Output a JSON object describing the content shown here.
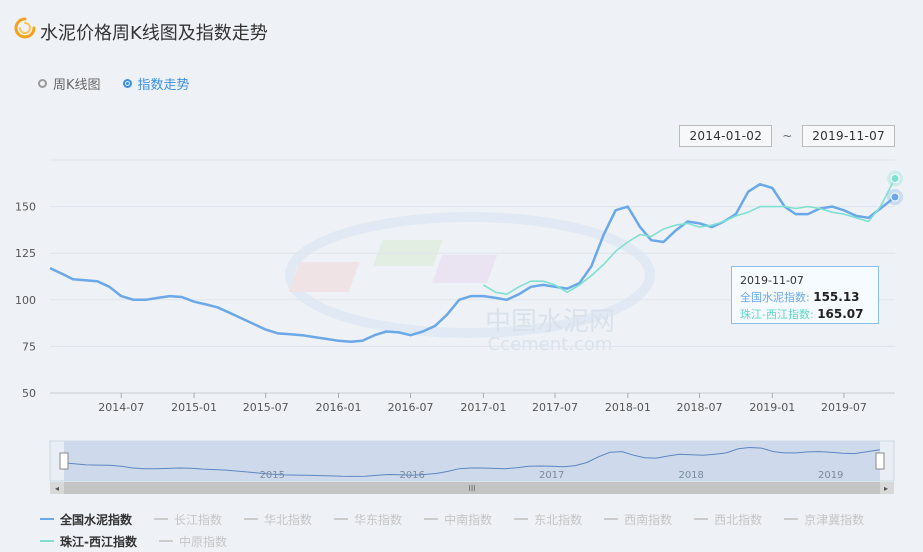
{
  "header": {
    "title": "水泥价格周K线图及指数走势",
    "logo_icon": "swirl-logo-icon"
  },
  "view_toggle": {
    "options": [
      {
        "label": "周K线图",
        "active": false
      },
      {
        "label": "指数走势",
        "active": true
      }
    ]
  },
  "date_range": {
    "start": "2014-01-02",
    "end": "2019-11-07",
    "separator": "~"
  },
  "watermark": {
    "line1": "中国水泥网",
    "line2": "Ccement.com"
  },
  "tooltip": {
    "date": "2019-11-07",
    "series": [
      {
        "label": "全国水泥指数:",
        "value": "155.13"
      },
      {
        "label": "珠江-西江指数:",
        "value": "165.07"
      }
    ]
  },
  "legend": [
    {
      "name": "全国水泥指数",
      "active": true,
      "color": "#6aa8e8"
    },
    {
      "name": "长江指数",
      "active": false
    },
    {
      "name": "华北指数",
      "active": false
    },
    {
      "name": "华东指数",
      "active": false
    },
    {
      "name": "中南指数",
      "active": false
    },
    {
      "name": "东北指数",
      "active": false
    },
    {
      "name": "西南指数",
      "active": false
    },
    {
      "name": "西北指数",
      "active": false
    },
    {
      "name": "京津冀指数",
      "active": false
    },
    {
      "name": "珠江-西江指数",
      "active": true,
      "color": "#7fe0d2"
    },
    {
      "name": "中原指数",
      "active": false
    }
  ],
  "chart_data": {
    "type": "line",
    "x_start": "2014-01-02",
    "x_end": "2019-11-07",
    "x_ticks": [
      "2014-07",
      "2015-01",
      "2015-07",
      "2016-01",
      "2016-07",
      "2017-01",
      "2017-07",
      "2018-01",
      "2018-07",
      "2019-01",
      "2019-07"
    ],
    "y_ticks": [
      50,
      75,
      100,
      125,
      150
    ],
    "ylim": [
      50,
      175
    ],
    "grid": true,
    "zoom_labels": [
      "2015",
      "2016",
      "2017",
      "2018",
      "2019"
    ],
    "series": [
      {
        "name": "全国水泥指数",
        "color": "#6aa8e8",
        "points": [
          [
            "2014-01-02",
            117
          ],
          [
            "2014-02-01",
            114
          ],
          [
            "2014-03-01",
            111
          ],
          [
            "2014-04-01",
            110.5
          ],
          [
            "2014-05-01",
            110
          ],
          [
            "2014-06-01",
            107
          ],
          [
            "2014-07-01",
            102
          ],
          [
            "2014-08-01",
            100
          ],
          [
            "2014-09-01",
            100
          ],
          [
            "2014-10-01",
            101
          ],
          [
            "2014-11-01",
            102
          ],
          [
            "2014-12-01",
            101.5
          ],
          [
            "2015-01-01",
            99
          ],
          [
            "2015-02-01",
            97.5
          ],
          [
            "2015-03-01",
            96
          ],
          [
            "2015-04-01",
            93
          ],
          [
            "2015-05-01",
            90
          ],
          [
            "2015-06-01",
            87
          ],
          [
            "2015-07-01",
            84
          ],
          [
            "2015-08-01",
            82
          ],
          [
            "2015-09-01",
            81.5
          ],
          [
            "2015-10-01",
            81
          ],
          [
            "2015-11-01",
            80
          ],
          [
            "2015-12-01",
            79
          ],
          [
            "2016-01-01",
            78
          ],
          [
            "2016-02-01",
            77.5
          ],
          [
            "2016-03-01",
            78
          ],
          [
            "2016-04-01",
            81
          ],
          [
            "2016-05-01",
            83
          ],
          [
            "2016-06-01",
            82.5
          ],
          [
            "2016-07-01",
            81
          ],
          [
            "2016-08-01",
            83
          ],
          [
            "2016-09-01",
            86
          ],
          [
            "2016-10-01",
            92
          ],
          [
            "2016-11-01",
            100
          ],
          [
            "2016-12-01",
            102
          ],
          [
            "2017-01-01",
            102
          ],
          [
            "2017-02-01",
            101
          ],
          [
            "2017-03-01",
            100
          ],
          [
            "2017-04-01",
            103
          ],
          [
            "2017-05-01",
            107
          ],
          [
            "2017-06-01",
            108
          ],
          [
            "2017-07-01",
            107
          ],
          [
            "2017-08-01",
            106
          ],
          [
            "2017-09-01",
            109
          ],
          [
            "2017-10-01",
            118
          ],
          [
            "2017-11-01",
            135
          ],
          [
            "2017-12-01",
            148
          ],
          [
            "2018-01-01",
            150
          ],
          [
            "2018-02-01",
            139
          ],
          [
            "2018-03-01",
            132
          ],
          [
            "2018-04-01",
            131
          ],
          [
            "2018-05-01",
            137
          ],
          [
            "2018-06-01",
            142
          ],
          [
            "2018-07-01",
            141
          ],
          [
            "2018-08-01",
            139
          ],
          [
            "2018-09-01",
            142
          ],
          [
            "2018-10-01",
            146
          ],
          [
            "2018-11-01",
            158
          ],
          [
            "2018-12-01",
            162
          ],
          [
            "2019-01-01",
            160
          ],
          [
            "2019-02-01",
            150
          ],
          [
            "2019-03-01",
            146
          ],
          [
            "2019-04-01",
            146
          ],
          [
            "2019-05-01",
            149
          ],
          [
            "2019-06-01",
            150
          ],
          [
            "2019-07-01",
            148
          ],
          [
            "2019-08-01",
            145
          ],
          [
            "2019-09-01",
            144
          ],
          [
            "2019-10-01",
            149
          ],
          [
            "2019-11-07",
            155.13
          ]
        ]
      },
      {
        "name": "珠江-西江指数",
        "color": "#7fe0d2",
        "points": [
          [
            "2017-01-01",
            108
          ],
          [
            "2017-02-01",
            104
          ],
          [
            "2017-03-01",
            103
          ],
          [
            "2017-04-01",
            107
          ],
          [
            "2017-05-01",
            110
          ],
          [
            "2017-06-01",
            110
          ],
          [
            "2017-07-01",
            108
          ],
          [
            "2017-08-01",
            104
          ],
          [
            "2017-09-01",
            108
          ],
          [
            "2017-10-01",
            113
          ],
          [
            "2017-11-01",
            119
          ],
          [
            "2017-12-01",
            126
          ],
          [
            "2018-01-01",
            131
          ],
          [
            "2018-02-01",
            135
          ],
          [
            "2018-03-01",
            134
          ],
          [
            "2018-04-01",
            138
          ],
          [
            "2018-05-01",
            140
          ],
          [
            "2018-06-01",
            141
          ],
          [
            "2018-07-01",
            139
          ],
          [
            "2018-08-01",
            140
          ],
          [
            "2018-09-01",
            142
          ],
          [
            "2018-10-01",
            145
          ],
          [
            "2018-11-01",
            147
          ],
          [
            "2018-12-01",
            150
          ],
          [
            "2019-01-01",
            150
          ],
          [
            "2019-02-01",
            150
          ],
          [
            "2019-03-01",
            149
          ],
          [
            "2019-04-01",
            150
          ],
          [
            "2019-05-01",
            149
          ],
          [
            "2019-06-01",
            147
          ],
          [
            "2019-07-01",
            146
          ],
          [
            "2019-08-01",
            144
          ],
          [
            "2019-09-01",
            142
          ],
          [
            "2019-10-01",
            150
          ],
          [
            "2019-11-07",
            165.07
          ]
        ]
      }
    ]
  }
}
